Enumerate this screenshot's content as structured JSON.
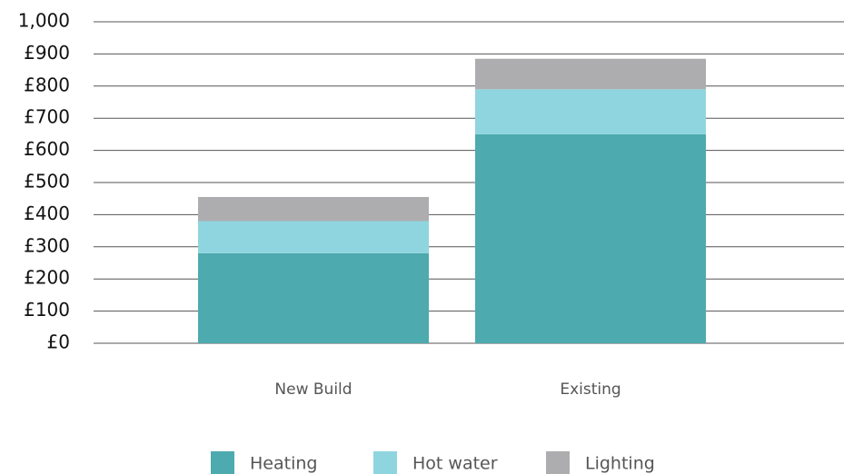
{
  "chart_data": {
    "type": "stacked_bar",
    "categories": [
      "New Build",
      "Existing"
    ],
    "series": [
      {
        "name": "Heating",
        "color": "#4daaae",
        "values": [
          280,
          650
        ]
      },
      {
        "name": "Hot water",
        "color": "#8fd5df",
        "values": [
          100,
          140
        ]
      },
      {
        "name": "Lighting",
        "color": "#adadaf",
        "values": [
          75,
          95
        ]
      }
    ],
    "ylim": [
      0,
      1000
    ],
    "yticks": [
      {
        "value": 0,
        "label": "£0"
      },
      {
        "value": 100,
        "label": "£100"
      },
      {
        "value": 200,
        "label": "£200"
      },
      {
        "value": 300,
        "label": "£300"
      },
      {
        "value": 400,
        "label": "£400"
      },
      {
        "value": 500,
        "label": "£500"
      },
      {
        "value": 600,
        "label": "£600"
      },
      {
        "value": 700,
        "label": "£700"
      },
      {
        "value": 800,
        "label": "£800"
      },
      {
        "value": 900,
        "label": "£900"
      },
      {
        "value": 1000,
        "label": "1,000"
      }
    ],
    "grid": true,
    "legend": "bottom"
  }
}
